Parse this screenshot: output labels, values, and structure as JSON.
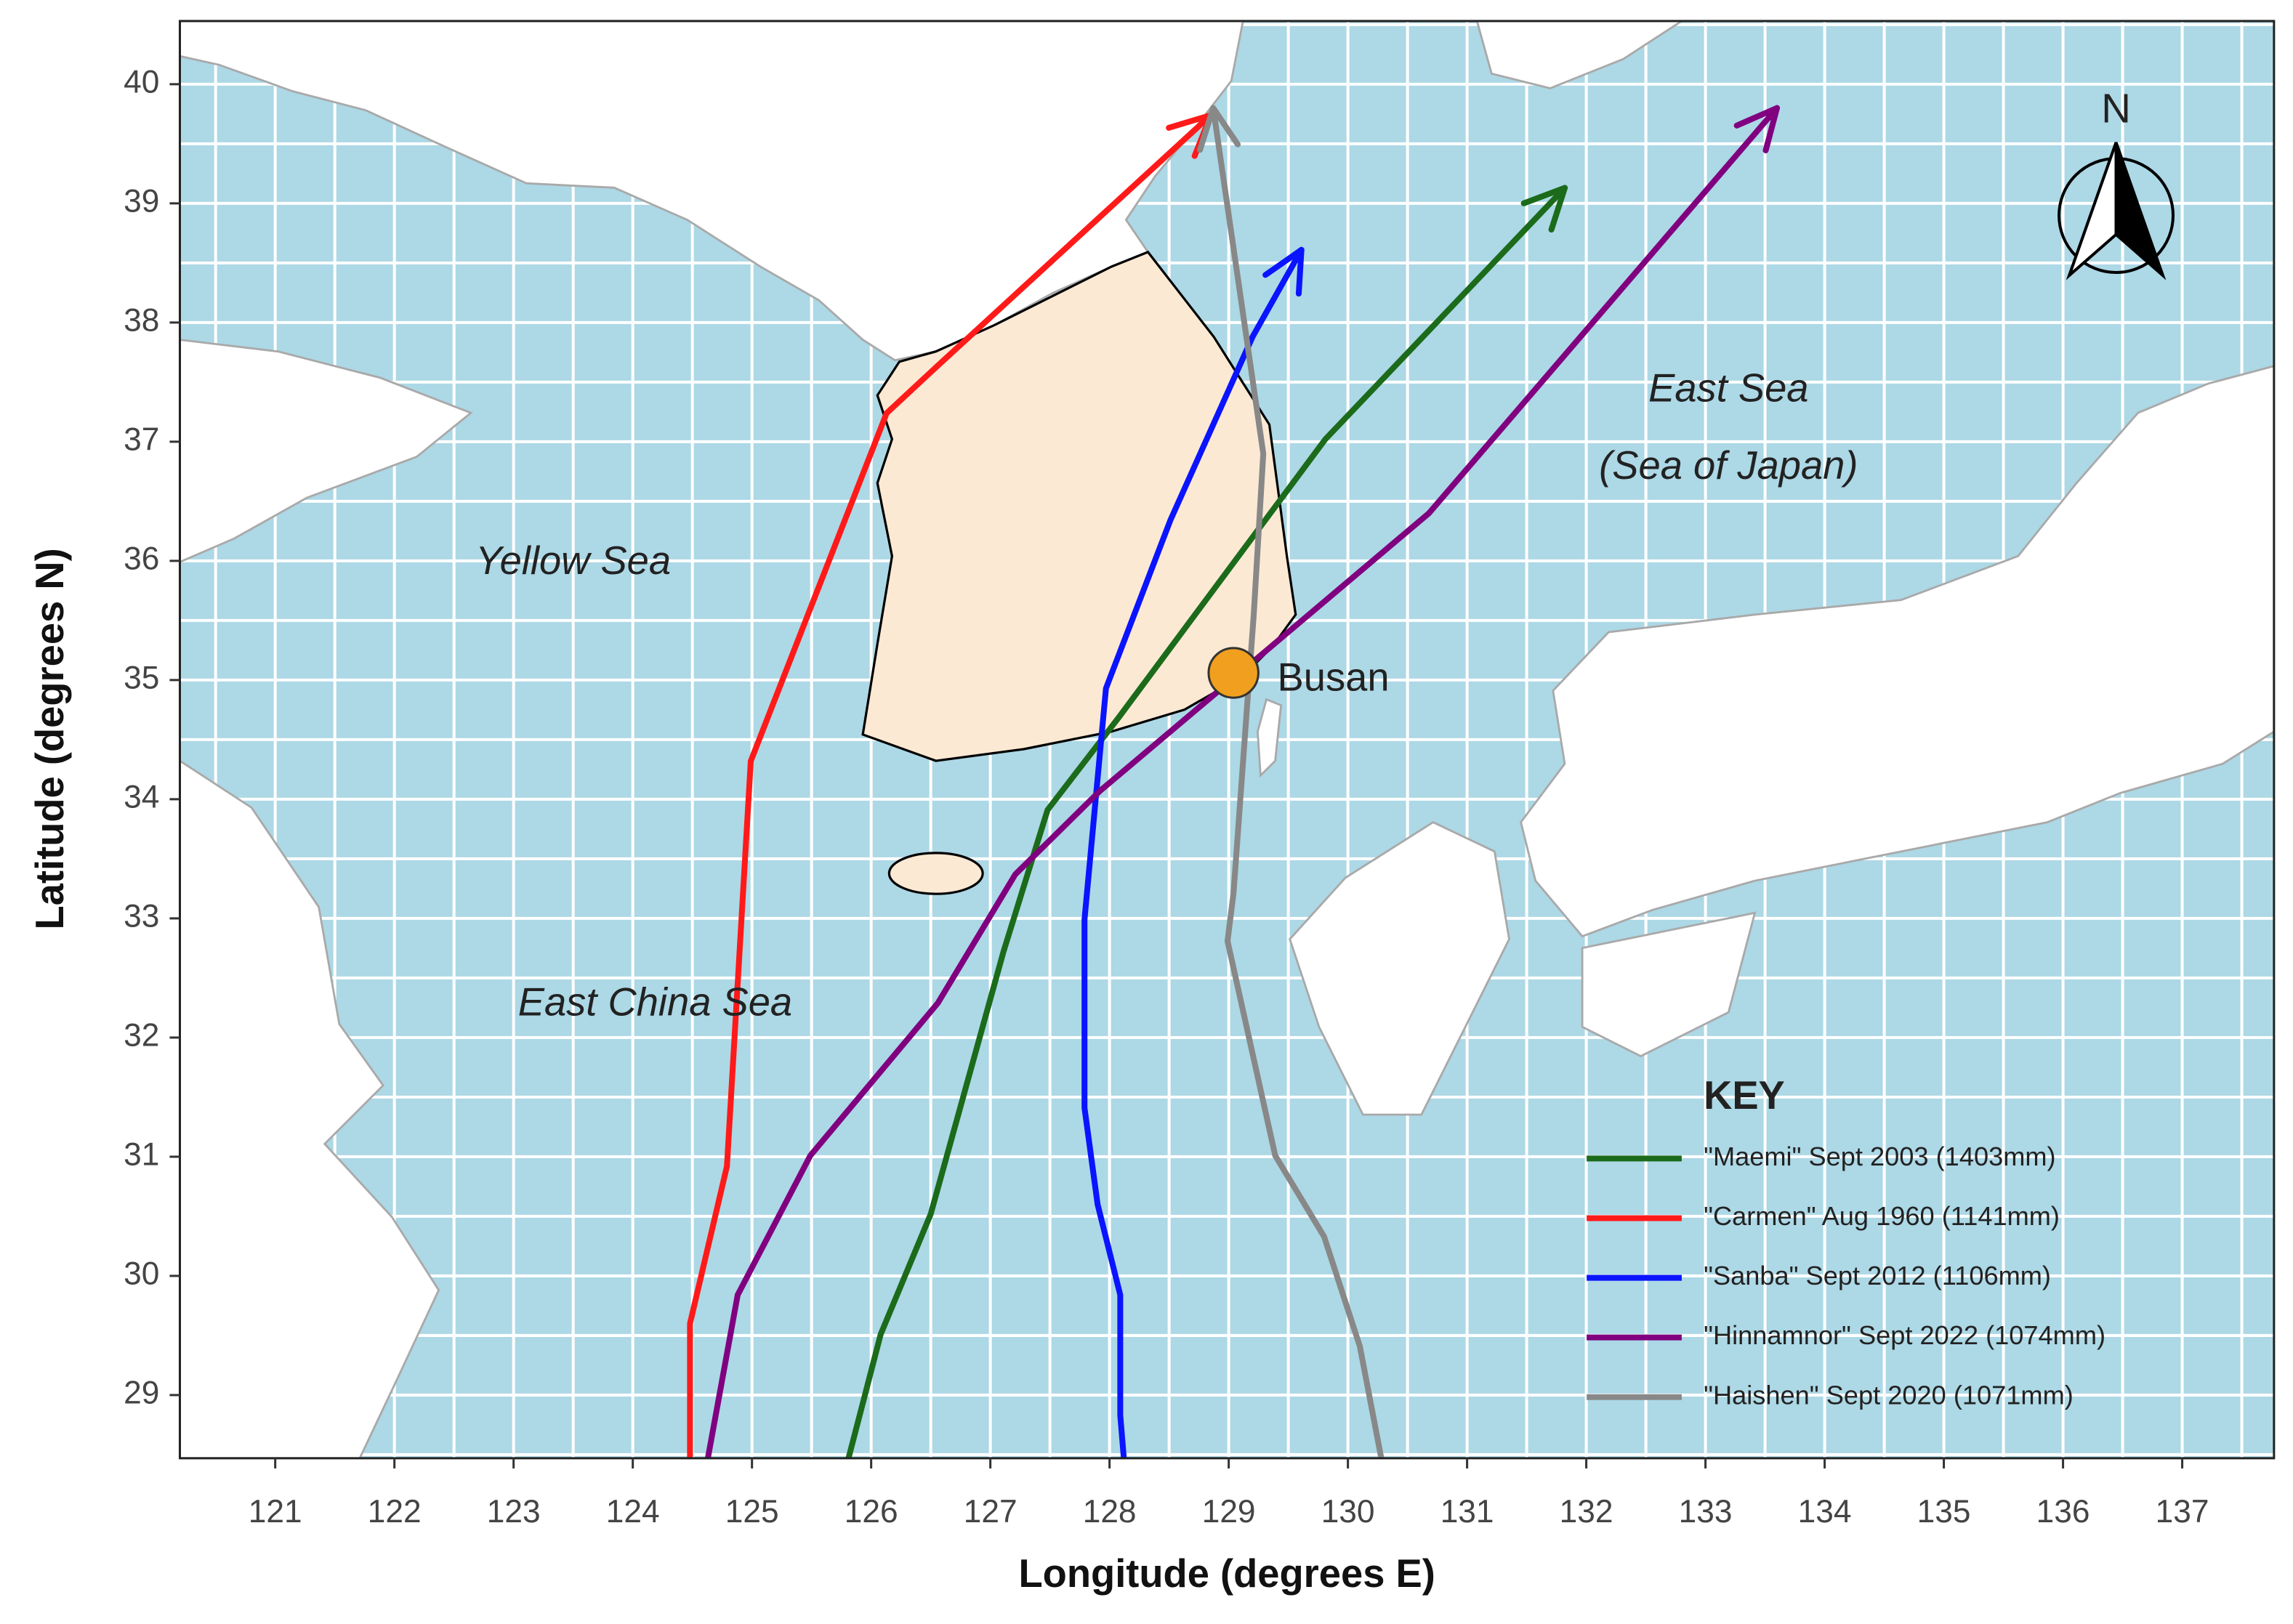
{
  "chart_data": {
    "type": "line",
    "xlabel": "Longitude (degrees E)",
    "ylabel": "Latitude (degrees N)",
    "xlim": [
      120.2,
      137.77
    ],
    "ylim": [
      28.47,
      40.53
    ],
    "xticks": [
      121,
      122,
      123,
      124,
      125,
      126,
      127,
      128,
      129,
      130,
      131,
      132,
      133,
      134,
      135,
      136,
      137
    ],
    "yticks": [
      29,
      30,
      31,
      32,
      33,
      34,
      35,
      36,
      37,
      38,
      39,
      40
    ],
    "grid": true,
    "legend_title": "KEY",
    "legend": "lower right",
    "series": [
      {
        "name": "\"Maemi\" Sept 2003 (1403mm)",
        "color": "#1b6b1b",
        "x": [
          125.81,
          126.08,
          126.5,
          127.11,
          127.48,
          128.08,
          129.81,
          131.82
        ],
        "values": [
          28.47,
          29.51,
          30.52,
          32.72,
          33.91,
          34.69,
          37.02,
          39.13
        ]
      },
      {
        "name": "\"Carmen\" Aug 1960 (1141mm)",
        "color": "#ff1a1a",
        "x": [
          124.48,
          124.48,
          124.79,
          124.99,
          126.13,
          126.55,
          128.85
        ],
        "values": [
          28.47,
          29.6,
          30.92,
          34.32,
          37.24,
          37.63,
          39.74
        ]
      },
      {
        "name": "\"Sanba\" Sept 2012 (1106mm)",
        "color": "#0a14ff",
        "x": [
          128.12,
          128.09,
          128.09,
          127.9,
          127.79,
          127.79,
          127.97,
          128.51,
          129.2,
          129.61
        ],
        "values": [
          28.47,
          28.83,
          29.84,
          30.6,
          31.41,
          32.99,
          34.93,
          36.34,
          37.88,
          38.61
        ]
      },
      {
        "name": "\"Hinnamnor\" Sept 2022 (1074mm)",
        "color": "#800080",
        "x": [
          124.63,
          124.88,
          125.49,
          126.56,
          127.21,
          127.92,
          128.94,
          130.68,
          133.6
        ],
        "values": [
          28.47,
          29.84,
          31.01,
          32.29,
          33.37,
          34.07,
          34.93,
          36.4,
          39.8
        ]
      },
      {
        "name": "\"Haishen\" Sept 2020 (1071mm)",
        "color": "#888888",
        "x": [
          130.28,
          130.1,
          129.8,
          129.39,
          128.99,
          129.04,
          129.21,
          129.29,
          128.87
        ],
        "values": [
          28.47,
          29.41,
          30.33,
          31.01,
          32.81,
          33.21,
          35.55,
          36.9,
          39.8
        ]
      }
    ],
    "marker": {
      "label": "Busan",
      "x": 129.04,
      "y": 35.06,
      "color": "#f0a01e"
    },
    "annotations": [
      "Yellow Sea",
      "East China Sea",
      "East Sea",
      "(Sea of Japan)"
    ],
    "north_label": "N"
  }
}
